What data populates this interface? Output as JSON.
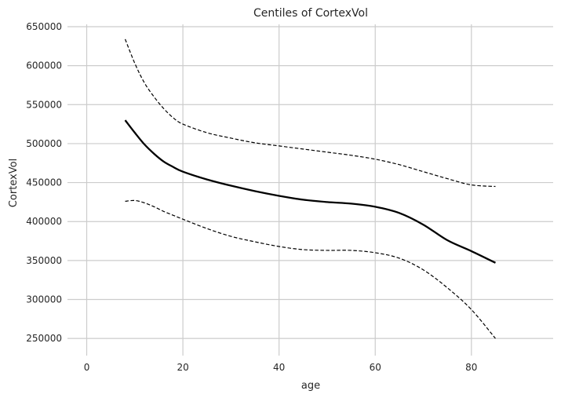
{
  "chart_data": {
    "type": "line",
    "title": "Centiles of CortexVol",
    "xlabel": "age",
    "ylabel": "CortexVol",
    "xlim": [
      -4,
      97
    ],
    "ylim": [
      228000,
      653000
    ],
    "x_ticks": [
      0,
      20,
      40,
      60,
      80
    ],
    "y_ticks": [
      250000,
      300000,
      350000,
      400000,
      450000,
      500000,
      550000,
      600000,
      650000
    ],
    "grid": true,
    "legend": "none",
    "series": [
      {
        "style": "solid",
        "color": "#000000",
        "x": [
          8,
          10,
          12,
          14,
          16,
          18,
          20,
          25,
          30,
          35,
          40,
          45,
          50,
          55,
          60,
          65,
          70,
          75,
          80,
          85
        ],
        "y": [
          530000,
          514000,
          499000,
          487000,
          477000,
          470000,
          464000,
          454000,
          446000,
          439000,
          433000,
          428000,
          425000,
          423000,
          419000,
          411000,
          396000,
          376000,
          362000,
          347000
        ]
      },
      {
        "style": "dashed",
        "color": "#000000",
        "x": [
          8,
          10,
          12,
          14,
          16,
          18,
          20,
          25,
          30,
          35,
          40,
          45,
          50,
          55,
          60,
          65,
          70,
          75,
          80,
          85
        ],
        "y": [
          634000,
          603000,
          578000,
          560000,
          545000,
          533000,
          525000,
          514000,
          507000,
          501000,
          497000,
          493000,
          489000,
          485000,
          480000,
          473000,
          464000,
          455000,
          447000,
          445000
        ]
      },
      {
        "style": "dashed",
        "color": "#000000",
        "x": [
          8,
          10,
          12,
          14,
          16,
          18,
          20,
          25,
          30,
          35,
          40,
          45,
          50,
          55,
          60,
          65,
          70,
          75,
          80,
          85
        ],
        "y": [
          426000,
          427000,
          424000,
          419000,
          413000,
          408000,
          403000,
          391000,
          381000,
          374000,
          368000,
          364000,
          363000,
          363000,
          360000,
          353000,
          338000,
          315000,
          287000,
          250000
        ]
      }
    ]
  }
}
